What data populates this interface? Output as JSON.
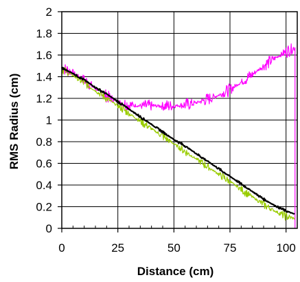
{
  "chart_data": {
    "type": "line",
    "title": "",
    "xlabel": "Distance (cm)",
    "ylabel": "RMS Radius (cm)",
    "xlim": [
      0,
      105
    ],
    "ylim": [
      0,
      2
    ],
    "x_ticks": [
      0,
      25,
      50,
      75,
      100
    ],
    "y_ticks": [
      0,
      0.2,
      0.4,
      0.6,
      0.8,
      1,
      1.2,
      1.4,
      1.6,
      1.8,
      2
    ],
    "x_tick_labels": [
      "0",
      "25",
      "50",
      "75",
      "100"
    ],
    "y_tick_labels": [
      "0",
      "0.2",
      "0.4",
      "0.6",
      "0.8",
      "1",
      "1.2",
      "1.4",
      "1.6",
      "1.8",
      "2"
    ],
    "grid": true,
    "legend": "none",
    "series": [
      {
        "color": "#ff00ff",
        "x": [
          0,
          5,
          10,
          15,
          20,
          25,
          30,
          35,
          40,
          45,
          50,
          55,
          60,
          65,
          70,
          75,
          80,
          85,
          90,
          95,
          100,
          104
        ],
        "values": [
          1.48,
          1.44,
          1.37,
          1.29,
          1.22,
          1.17,
          1.14,
          1.13,
          1.13,
          1.13,
          1.13,
          1.14,
          1.16,
          1.19,
          1.23,
          1.28,
          1.35,
          1.42,
          1.5,
          1.57,
          1.63,
          1.67
        ],
        "noise_amplitude": 0.06
      },
      {
        "color": "#99cc00",
        "x": [
          0,
          5,
          10,
          15,
          20,
          25,
          30,
          35,
          40,
          45,
          50,
          55,
          60,
          65,
          70,
          75,
          80,
          85,
          90,
          95,
          100,
          104
        ],
        "values": [
          1.47,
          1.41,
          1.34,
          1.27,
          1.2,
          1.13,
          1.06,
          0.99,
          0.92,
          0.85,
          0.78,
          0.71,
          0.64,
          0.57,
          0.5,
          0.43,
          0.36,
          0.29,
          0.22,
          0.16,
          0.11,
          0.09
        ],
        "noise_amplitude": 0.04
      },
      {
        "color": "#000000",
        "x": [
          0,
          5,
          10,
          15,
          20,
          25,
          30,
          35,
          40,
          45,
          50,
          55,
          60,
          65,
          70,
          75,
          80,
          85,
          90,
          95,
          100,
          104
        ],
        "values": [
          1.48,
          1.43,
          1.37,
          1.3,
          1.24,
          1.17,
          1.1,
          1.03,
          0.96,
          0.89,
          0.82,
          0.76,
          0.69,
          0.62,
          0.55,
          0.48,
          0.41,
          0.34,
          0.27,
          0.21,
          0.16,
          0.13
        ],
        "noise_amplitude": 0.012
      }
    ]
  }
}
